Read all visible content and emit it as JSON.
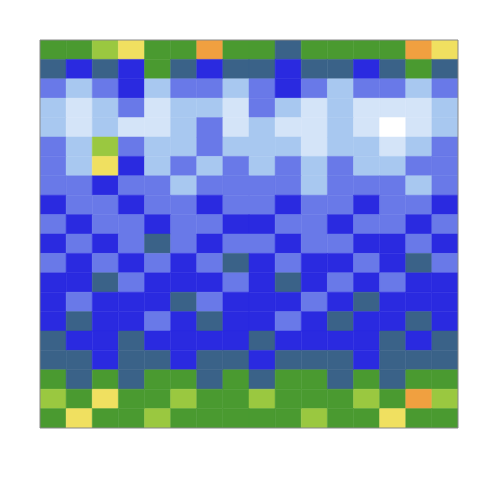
{
  "chart_data": {
    "type": "heatmap",
    "tick_labels": false,
    "grid": false,
    "xlim": [
      0,
      16
    ],
    "ylim": [
      0,
      20
    ],
    "zlim": [
      0,
      10
    ],
    "cells": [
      [
        6,
        6,
        7,
        8,
        6,
        6,
        9,
        6,
        6,
        5,
        6,
        6,
        6,
        6,
        9,
        8
      ],
      [
        5,
        4,
        5,
        4,
        6,
        5,
        4,
        5,
        5,
        4,
        5,
        5,
        4,
        5,
        6,
        5
      ],
      [
        3,
        2,
        3,
        4,
        2,
        3,
        3,
        2,
        3,
        4,
        3,
        2,
        3,
        3,
        2,
        3
      ],
      [
        2,
        1,
        2,
        3,
        1,
        2,
        2,
        1,
        3,
        2,
        1,
        2,
        1,
        1,
        1,
        2
      ],
      [
        2,
        1,
        2,
        1,
        1,
        2,
        3,
        1,
        2,
        1,
        1,
        2,
        1,
        0,
        1,
        2
      ],
      [
        3,
        2,
        7,
        3,
        2,
        2,
        3,
        2,
        2,
        2,
        1,
        2,
        2,
        1,
        2,
        3
      ],
      [
        3,
        2,
        8,
        4,
        2,
        3,
        2,
        3,
        2,
        3,
        2,
        3,
        2,
        2,
        3,
        3
      ],
      [
        3,
        3,
        4,
        3,
        3,
        2,
        3,
        3,
        3,
        3,
        2,
        3,
        3,
        3,
        2,
        3
      ],
      [
        4,
        3,
        3,
        4,
        3,
        3,
        4,
        3,
        3,
        4,
        3,
        3,
        4,
        3,
        3,
        4
      ],
      [
        3,
        4,
        3,
        3,
        4,
        3,
        3,
        4,
        4,
        3,
        3,
        4,
        3,
        3,
        4,
        3
      ],
      [
        4,
        3,
        4,
        3,
        5,
        3,
        4,
        3,
        3,
        4,
        3,
        3,
        4,
        4,
        3,
        4
      ],
      [
        3,
        4,
        3,
        4,
        3,
        4,
        3,
        5,
        4,
        3,
        4,
        4,
        3,
        4,
        5,
        3
      ],
      [
        4,
        4,
        5,
        3,
        4,
        4,
        4,
        3,
        4,
        5,
        4,
        3,
        4,
        3,
        4,
        4
      ],
      [
        4,
        3,
        4,
        4,
        4,
        5,
        3,
        4,
        4,
        4,
        3,
        4,
        5,
        4,
        4,
        4
      ],
      [
        4,
        5,
        4,
        4,
        3,
        4,
        5,
        4,
        4,
        3,
        4,
        5,
        4,
        4,
        5,
        4
      ],
      [
        5,
        4,
        4,
        5,
        4,
        4,
        4,
        4,
        5,
        4,
        4,
        4,
        4,
        5,
        4,
        5
      ],
      [
        5,
        5,
        4,
        5,
        5,
        4,
        5,
        5,
        4,
        5,
        5,
        5,
        4,
        5,
        5,
        5
      ],
      [
        6,
        5,
        6,
        5,
        6,
        6,
        5,
        6,
        5,
        6,
        6,
        5,
        6,
        5,
        6,
        6
      ],
      [
        7,
        6,
        8,
        6,
        6,
        7,
        6,
        6,
        7,
        6,
        6,
        6,
        7,
        6,
        9,
        7
      ],
      [
        6,
        8,
        6,
        6,
        7,
        6,
        6,
        6,
        6,
        6,
        7,
        6,
        6,
        8,
        6,
        6
      ]
    ]
  }
}
